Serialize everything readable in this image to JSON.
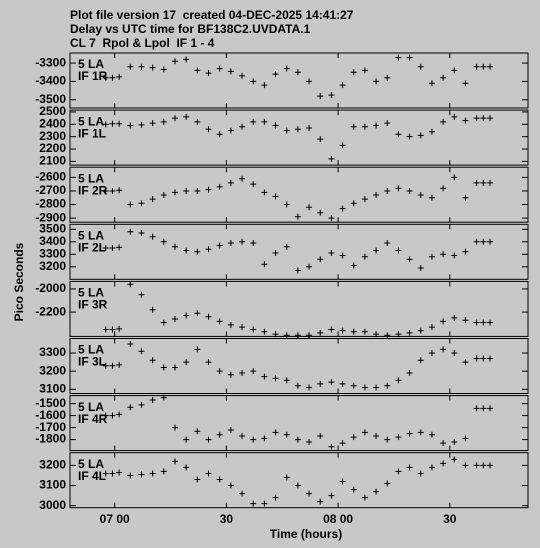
{
  "header": {
    "lines": [
      "Plot file version 17  created 04-DEC-2025 14:41:27",
      "Delay vs UTC time for BF138C2.UVDATA.1",
      "CL 7  Rpol & Lpol  IF 1 - 4"
    ]
  },
  "ylabel": "Pico Seconds",
  "x_axis": {
    "label": "Time (hours)",
    "xlim": [
      6.8,
      8.85
    ],
    "xticks": [
      {
        "value": 7,
        "label": "07 00"
      },
      {
        "value": 7.5,
        "label": "30"
      },
      {
        "value": 8,
        "label": "08 00"
      },
      {
        "value": 8.5,
        "label": "30"
      }
    ]
  },
  "chart_data": [
    {
      "type": "scatter",
      "text": [
        "5 LA",
        "IF 1R"
      ],
      "ylim": [
        -3545,
        -3245
      ],
      "yticks": [
        -3300,
        -3400,
        -3500
      ],
      "x": [
        6.96,
        6.99,
        7.02,
        7.07,
        7.12,
        7.17,
        7.22,
        7.27,
        7.32,
        7.37,
        7.42,
        7.47,
        7.52,
        7.57,
        7.62,
        7.67,
        7.72,
        7.77,
        7.82,
        7.87,
        7.92,
        7.97,
        8.02,
        8.07,
        8.12,
        8.17,
        8.22,
        8.27,
        8.32,
        8.37,
        8.42,
        8.47,
        8.52,
        8.57,
        8.62,
        8.65,
        8.68
      ],
      "values": [
        -3380,
        -3380,
        -3375,
        -3320,
        -3320,
        -3325,
        -3335,
        -3290,
        -3280,
        -3340,
        -3355,
        -3330,
        -3345,
        -3370,
        -3400,
        -3420,
        -3360,
        -3330,
        -3350,
        -3400,
        -3480,
        -3475,
        -3420,
        -3350,
        -3340,
        -3400,
        -3380,
        -3270,
        -3270,
        -3320,
        -3410,
        -3380,
        -3340,
        -3410,
        -3320,
        -3320,
        -3320
      ]
    },
    {
      "type": "scatter",
      "text": [
        "5 LA",
        "IF 1L"
      ],
      "ylim": [
        2070,
        2515
      ],
      "yticks": [
        2500,
        2400,
        2300,
        2200,
        2100
      ],
      "x": [
        6.96,
        6.99,
        7.02,
        7.07,
        7.12,
        7.17,
        7.22,
        7.27,
        7.32,
        7.37,
        7.42,
        7.47,
        7.52,
        7.57,
        7.62,
        7.67,
        7.72,
        7.77,
        7.82,
        7.87,
        7.92,
        7.97,
        8.02,
        8.07,
        8.12,
        8.17,
        8.22,
        8.27,
        8.32,
        8.37,
        8.42,
        8.47,
        8.52,
        8.57,
        8.62,
        8.65,
        8.68
      ],
      "values": [
        2400,
        2405,
        2405,
        2390,
        2395,
        2410,
        2420,
        2450,
        2460,
        2420,
        2360,
        2320,
        2350,
        2380,
        2420,
        2420,
        2390,
        2350,
        2360,
        2370,
        2280,
        2120,
        2230,
        2380,
        2380,
        2390,
        2410,
        2320,
        2300,
        2310,
        2340,
        2420,
        2460,
        2430,
        2450,
        2450,
        2450
      ]
    },
    {
      "type": "scatter",
      "text": [
        "5 LA",
        "IF 2R"
      ],
      "ylim": [
        -2930,
        -2525
      ],
      "yticks": [
        -2600,
        -2700,
        -2800,
        -2900
      ],
      "x": [
        6.96,
        6.99,
        7.02,
        7.07,
        7.12,
        7.17,
        7.22,
        7.27,
        7.32,
        7.37,
        7.42,
        7.47,
        7.52,
        7.57,
        7.62,
        7.67,
        7.72,
        7.77,
        7.82,
        7.87,
        7.92,
        7.97,
        8.02,
        8.07,
        8.12,
        8.17,
        8.22,
        8.27,
        8.32,
        8.37,
        8.42,
        8.47,
        8.52,
        8.57,
        8.62,
        8.65,
        8.68
      ],
      "values": [
        -2700,
        -2700,
        -2695,
        -2800,
        -2790,
        -2760,
        -2730,
        -2710,
        -2700,
        -2700,
        -2690,
        -2670,
        -2640,
        -2610,
        -2650,
        -2710,
        -2740,
        -2800,
        -2890,
        -2820,
        -2860,
        -2900,
        -2830,
        -2790,
        -2760,
        -2730,
        -2700,
        -2680,
        -2700,
        -2730,
        -2750,
        -2680,
        -2600,
        -2750,
        -2640,
        -2640,
        -2640
      ]
    },
    {
      "type": "scatter",
      "text": [
        "5 LA",
        "IF 2L"
      ],
      "ylim": [
        3100,
        3540
      ],
      "yticks": [
        3500,
        3400,
        3300,
        3200
      ],
      "x": [
        6.96,
        6.99,
        7.02,
        7.07,
        7.12,
        7.17,
        7.22,
        7.27,
        7.32,
        7.37,
        7.42,
        7.47,
        7.52,
        7.57,
        7.62,
        7.67,
        7.72,
        7.77,
        7.82,
        7.87,
        7.92,
        7.97,
        8.02,
        8.07,
        8.12,
        8.17,
        8.22,
        8.27,
        8.32,
        8.37,
        8.42,
        8.47,
        8.52,
        8.57,
        8.62,
        8.65,
        8.68
      ],
      "values": [
        3350,
        3350,
        3355,
        3480,
        3470,
        3440,
        3400,
        3360,
        3330,
        3320,
        3340,
        3370,
        3390,
        3400,
        3390,
        3220,
        3310,
        3360,
        3170,
        3200,
        3260,
        3310,
        3290,
        3210,
        3280,
        3330,
        3390,
        3330,
        3260,
        3190,
        3280,
        3300,
        3290,
        3320,
        3400,
        3400,
        3400
      ]
    },
    {
      "type": "scatter",
      "text": [
        "5 LA",
        "IF 3R"
      ],
      "ylim": [
        -2410,
        -1935
      ],
      "yticks": [
        -2000,
        -2200
      ],
      "x": [
        6.96,
        6.99,
        7.02,
        7.07,
        7.12,
        7.17,
        7.22,
        7.27,
        7.32,
        7.37,
        7.42,
        7.47,
        7.52,
        7.57,
        7.62,
        7.67,
        7.72,
        7.77,
        7.82,
        7.87,
        7.92,
        7.97,
        8.02,
        8.07,
        8.12,
        8.17,
        8.22,
        8.27,
        8.32,
        8.37,
        8.42,
        8.47,
        8.52,
        8.57,
        8.62,
        8.65,
        8.68
      ],
      "values": [
        -2350,
        -2350,
        -2345,
        -1960,
        -2050,
        -2180,
        -2290,
        -2260,
        -2230,
        -2210,
        -2240,
        -2280,
        -2310,
        -2330,
        -2350,
        -2370,
        -2390,
        -2400,
        -2400,
        -2400,
        -2380,
        -2350,
        -2360,
        -2370,
        -2370,
        -2390,
        -2400,
        -2390,
        -2380,
        -2360,
        -2330,
        -2280,
        -2250,
        -2270,
        -2290,
        -2290,
        -2290
      ]
    },
    {
      "type": "scatter",
      "text": [
        "5 LA",
        "IF 3L"
      ],
      "ylim": [
        3077,
        3380
      ],
      "yticks": [
        3300,
        3200,
        3100
      ],
      "x": [
        6.96,
        6.99,
        7.02,
        7.07,
        7.12,
        7.17,
        7.22,
        7.27,
        7.32,
        7.37,
        7.42,
        7.47,
        7.52,
        7.57,
        7.62,
        7.67,
        7.72,
        7.77,
        7.82,
        7.87,
        7.92,
        7.97,
        8.02,
        8.07,
        8.12,
        8.17,
        8.22,
        8.27,
        8.32,
        8.37,
        8.42,
        8.47,
        8.52,
        8.57,
        8.62,
        8.65,
        8.68
      ],
      "values": [
        3230,
        3230,
        3235,
        3350,
        3310,
        3260,
        3220,
        3220,
        3250,
        3320,
        3250,
        3200,
        3180,
        3190,
        3200,
        3170,
        3160,
        3150,
        3120,
        3110,
        3130,
        3140,
        3130,
        3120,
        3110,
        3110,
        3120,
        3150,
        3190,
        3260,
        3300,
        3320,
        3300,
        3250,
        3270,
        3270,
        3270
      ]
    },
    {
      "type": "scatter",
      "text": [
        "5 LA",
        "IF 4R"
      ],
      "ylim": [
        -1892,
        -1433
      ],
      "yticks": [
        -1500,
        -1600,
        -1700,
        -1800
      ],
      "x": [
        6.96,
        6.99,
        7.02,
        7.07,
        7.12,
        7.17,
        7.22,
        7.27,
        7.32,
        7.37,
        7.42,
        7.47,
        7.52,
        7.57,
        7.62,
        7.67,
        7.72,
        7.77,
        7.82,
        7.87,
        7.92,
        7.97,
        8.02,
        8.07,
        8.12,
        8.17,
        8.22,
        8.27,
        8.32,
        8.37,
        8.42,
        8.47,
        8.52,
        8.57,
        8.62,
        8.65,
        8.68
      ],
      "values": [
        -1600,
        -1600,
        -1590,
        -1530,
        -1510,
        -1470,
        -1450,
        -1700,
        -1800,
        -1730,
        -1800,
        -1760,
        -1720,
        -1770,
        -1800,
        -1790,
        -1740,
        -1760,
        -1800,
        -1820,
        -1770,
        -1860,
        -1830,
        -1780,
        -1740,
        -1770,
        -1800,
        -1780,
        -1750,
        -1740,
        -1760,
        -1830,
        -1820,
        -1790,
        -1540,
        -1540,
        -1540
      ]
    },
    {
      "type": "scatter",
      "text": [
        "5 LA",
        "IF 4L"
      ],
      "ylim": [
        2990,
        3263
      ],
      "yticks": [
        3200,
        3100,
        3000
      ],
      "x": [
        6.96,
        6.99,
        7.02,
        7.07,
        7.12,
        7.17,
        7.22,
        7.27,
        7.32,
        7.37,
        7.42,
        7.47,
        7.52,
        7.57,
        7.62,
        7.67,
        7.72,
        7.77,
        7.82,
        7.87,
        7.92,
        7.97,
        8.02,
        8.07,
        8.12,
        8.17,
        8.22,
        8.27,
        8.32,
        8.37,
        8.42,
        8.47,
        8.52,
        8.57,
        8.62,
        8.65,
        8.68
      ],
      "values": [
        3160,
        3160,
        3165,
        3150,
        3155,
        3160,
        3170,
        3220,
        3190,
        3130,
        3160,
        3130,
        3100,
        3060,
        3010,
        3010,
        3040,
        3140,
        3100,
        3060,
        3020,
        3050,
        3120,
        3080,
        3040,
        3070,
        3110,
        3170,
        3190,
        3160,
        3190,
        3210,
        3230,
        3200,
        3200,
        3200,
        3200
      ]
    }
  ]
}
